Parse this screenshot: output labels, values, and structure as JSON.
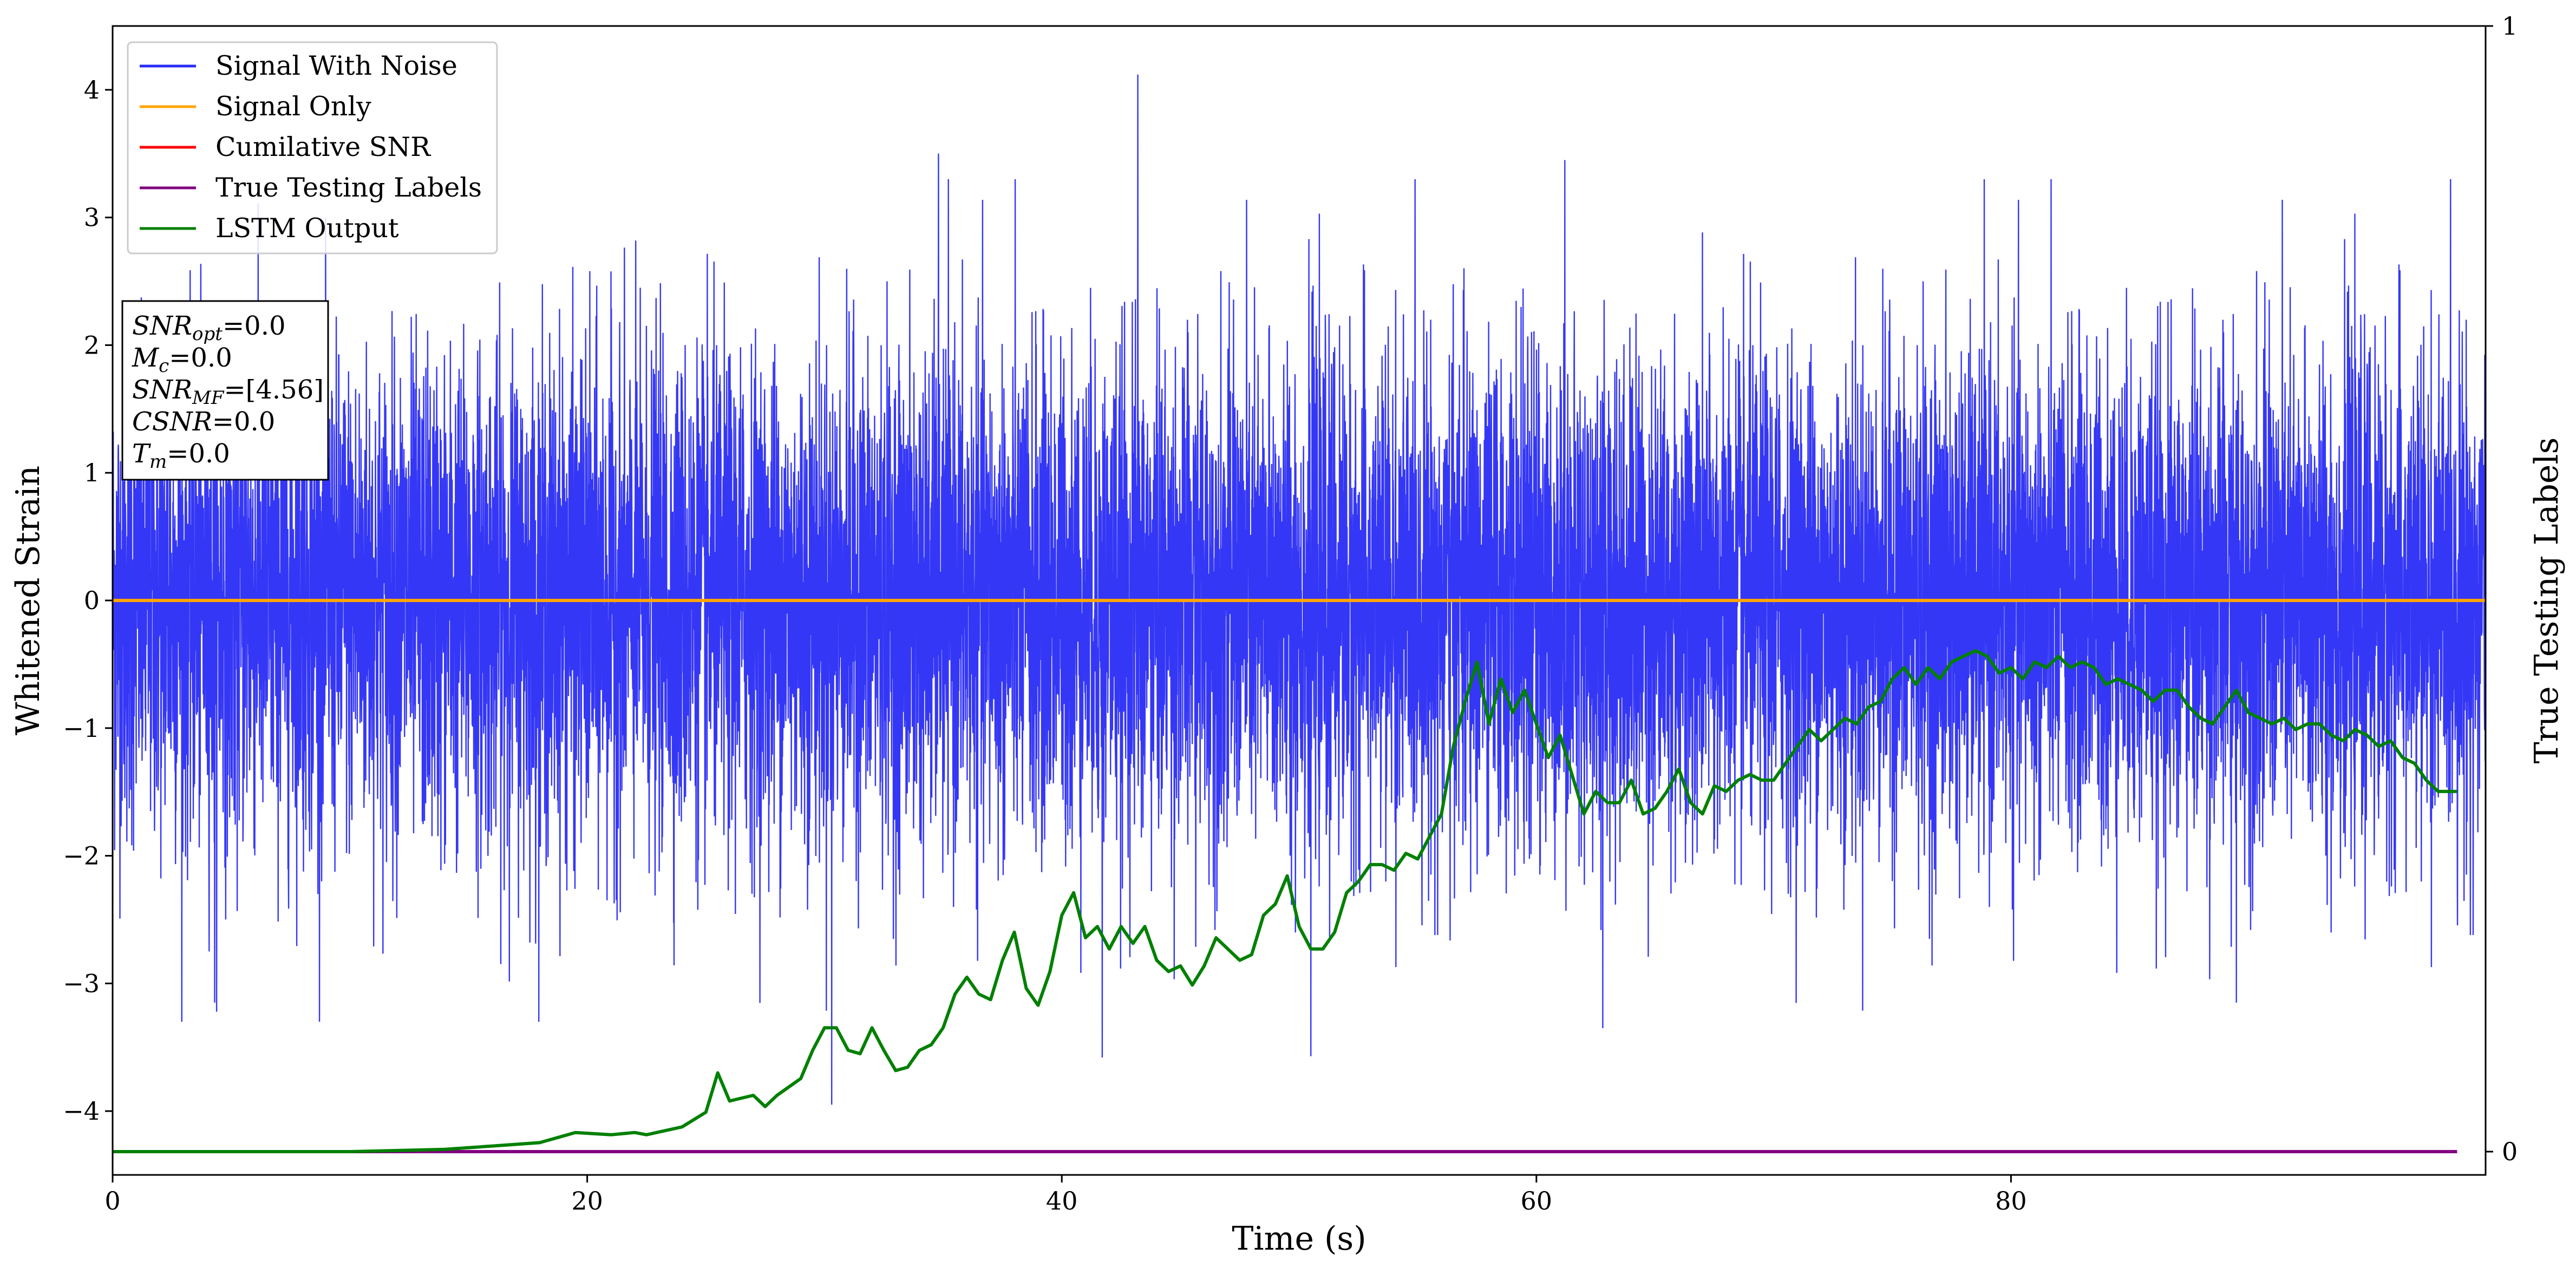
{
  "chart_data": {
    "type": "line",
    "xlabel": "Time (s)",
    "ylabel": "Whitened Strain",
    "y2label": "True Testing Labels",
    "xlim": [
      0,
      100
    ],
    "ylim": [
      -4.5,
      4.5
    ],
    "y2lim": [
      0,
      1
    ],
    "x_ticks": [
      0,
      20,
      40,
      60,
      80
    ],
    "y_ticks": [
      -4,
      -3,
      -2,
      -1,
      0,
      1,
      2,
      3,
      4
    ],
    "y2_ticks": [
      0,
      1
    ],
    "grid": false,
    "legend_position": "top-left",
    "series": [
      {
        "name": "Signal With Noise",
        "color": "#2a2cf5",
        "axis": "left",
        "style": "dense noise, approx. Gaussian around 0, range roughly -3.9 to 4.1",
        "notable_points": [
          {
            "x": 43.2,
            "y": 4.12
          },
          {
            "x": 30.3,
            "y": -3.95
          },
          {
            "x": 34.8,
            "y": 3.5
          },
          {
            "x": 61.2,
            "y": 3.45
          },
          {
            "x": 62.8,
            "y": -3.35
          },
          {
            "x": 4.3,
            "y": -3.15
          },
          {
            "x": 89.5,
            "y": -3.15
          },
          {
            "x": 50.5,
            "y": -3.57
          },
          {
            "x": 41.7,
            "y": -3.58
          }
        ]
      },
      {
        "name": "Signal Only",
        "color": "#ffa500",
        "axis": "left",
        "x": [
          0,
          100
        ],
        "y": [
          0,
          0
        ]
      },
      {
        "name": "Cumilative SNR",
        "color": "#ff0000",
        "axis": "left",
        "x": [],
        "y": []
      },
      {
        "name": "True Testing Labels",
        "color": "#800080",
        "axis": "right",
        "x": [
          0,
          98.8
        ],
        "y": [
          0,
          0
        ]
      },
      {
        "name": "LSTM Output",
        "color": "#008000",
        "axis": "right",
        "x": [
          0,
          10,
          14,
          16,
          18,
          19.5,
          21,
          22,
          22.5,
          24,
          25,
          25.5,
          26,
          27,
          27.5,
          28,
          29,
          29.5,
          30,
          30.5,
          31,
          31.5,
          32,
          32.5,
          33,
          33.5,
          34,
          34.5,
          35,
          35.5,
          36,
          36.5,
          37,
          37.5,
          38,
          38.5,
          39,
          39.5,
          40,
          40.5,
          41,
          41.5,
          42,
          42.5,
          43,
          43.5,
          44,
          44.5,
          45,
          45.5,
          46,
          46.5,
          47,
          47.5,
          48,
          48.5,
          49,
          49.5,
          50,
          50.5,
          51,
          51.5,
          52,
          52.5,
          53,
          53.5,
          54,
          54.5,
          55,
          55.5,
          56,
          56.5,
          57,
          57.5,
          58,
          58.5,
          59,
          59.5,
          60,
          60.5,
          61,
          61.5,
          62,
          62.5,
          63,
          63.5,
          64,
          64.5,
          65,
          65.5,
          66,
          66.5,
          67,
          67.5,
          68,
          68.5,
          69,
          69.5,
          70,
          70.5,
          71,
          71.5,
          72,
          72.5,
          73,
          73.5,
          74,
          74.5,
          75,
          75.5,
          76,
          76.5,
          77,
          77.5,
          78,
          78.5,
          79,
          79.5,
          80,
          80.5,
          81,
          81.5,
          82,
          82.5,
          83,
          83.5,
          84,
          84.5,
          85,
          85.5,
          86,
          86.5,
          87,
          87.5,
          88,
          88.5,
          89,
          89.5,
          90,
          90.5,
          91,
          91.5,
          92,
          92.5,
          93,
          93.5,
          94,
          94.5,
          95,
          95.5,
          96,
          96.5,
          97,
          97.5,
          98,
          98.8
        ],
        "y": [
          0.0,
          0.0,
          0.002,
          0.005,
          0.008,
          0.017,
          0.015,
          0.017,
          0.015,
          0.022,
          0.035,
          0.07,
          0.045,
          0.05,
          0.04,
          0.05,
          0.065,
          0.09,
          0.11,
          0.11,
          0.09,
          0.087,
          0.11,
          0.09,
          0.072,
          0.075,
          0.09,
          0.095,
          0.11,
          0.14,
          0.155,
          0.14,
          0.135,
          0.17,
          0.195,
          0.145,
          0.13,
          0.16,
          0.21,
          0.23,
          0.19,
          0.2,
          0.18,
          0.2,
          0.185,
          0.2,
          0.17,
          0.16,
          0.165,
          0.148,
          0.165,
          0.19,
          0.18,
          0.17,
          0.175,
          0.21,
          0.22,
          0.245,
          0.2,
          0.18,
          0.18,
          0.195,
          0.23,
          0.24,
          0.255,
          0.255,
          0.25,
          0.265,
          0.26,
          0.28,
          0.3,
          0.36,
          0.4,
          0.435,
          0.38,
          0.42,
          0.39,
          0.41,
          0.38,
          0.35,
          0.37,
          0.335,
          0.3,
          0.32,
          0.31,
          0.31,
          0.33,
          0.3,
          0.305,
          0.32,
          0.34,
          0.31,
          0.3,
          0.325,
          0.32,
          0.33,
          0.335,
          0.33,
          0.33,
          0.345,
          0.36,
          0.375,
          0.365,
          0.375,
          0.385,
          0.38,
          0.395,
          0.4,
          0.42,
          0.43,
          0.415,
          0.43,
          0.42,
          0.435,
          0.44,
          0.445,
          0.44,
          0.425,
          0.43,
          0.42,
          0.435,
          0.43,
          0.44,
          0.43,
          0.435,
          0.43,
          0.415,
          0.42,
          0.415,
          0.41,
          0.4,
          0.41,
          0.41,
          0.395,
          0.385,
          0.38,
          0.395,
          0.41,
          0.39,
          0.385,
          0.38,
          0.385,
          0.375,
          0.38,
          0.38,
          0.37,
          0.365,
          0.375,
          0.37,
          0.36,
          0.365,
          0.35,
          0.345,
          0.33,
          0.32,
          0.32
        ]
      }
    ],
    "annotation": {
      "lines": [
        {
          "base": "SNR",
          "sub": "opt",
          "value": "=0.0"
        },
        {
          "base": "M",
          "sub": "c",
          "value": "=0.0"
        },
        {
          "base": "SNR",
          "sub": "MF",
          "value": "=[4.56]"
        },
        {
          "base": "CSNR",
          "sub": "",
          "value": "=0.0"
        },
        {
          "base": "T",
          "sub": "m",
          "value": "=0.0"
        }
      ]
    }
  }
}
